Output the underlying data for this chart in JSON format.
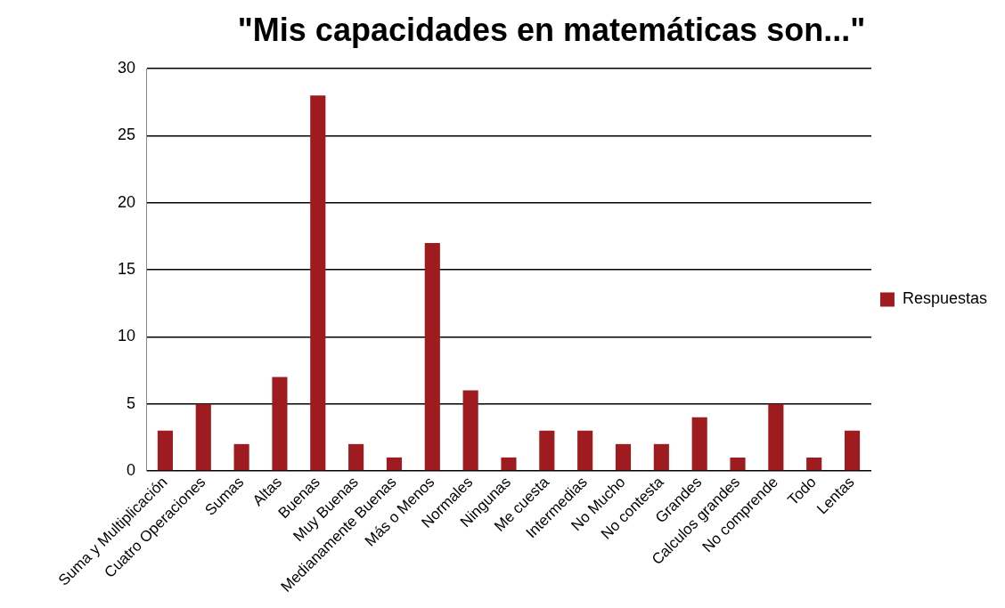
{
  "chart_data": {
    "type": "bar",
    "title": "\"Mis capacidades en matemáticas son...\"",
    "categories": [
      "Suma y Multiplicación",
      "Cuatro Operaciones",
      "Sumas",
      "Altas",
      "Buenas",
      "Muy Buenas",
      "Medianamente Buenas",
      "Más o Menos",
      "Normales",
      "Ningunas",
      "Me cuesta",
      "Intermedias",
      "No Mucho",
      "No contesta",
      "Grandes",
      "Calculos grandes",
      "No comprende",
      "Todo",
      "Lentas"
    ],
    "series": [
      {
        "name": "Respuestas",
        "color": "#9e1b20",
        "values": [
          3,
          5,
          2,
          7,
          28,
          2,
          1,
          17,
          6,
          1,
          3,
          3,
          2,
          2,
          4,
          1,
          5,
          1,
          3
        ]
      }
    ],
    "ylim": [
      0,
      30
    ],
    "yticks": [
      0,
      5,
      10,
      15,
      20,
      25,
      30
    ],
    "grid": "y",
    "legend": "right"
  }
}
